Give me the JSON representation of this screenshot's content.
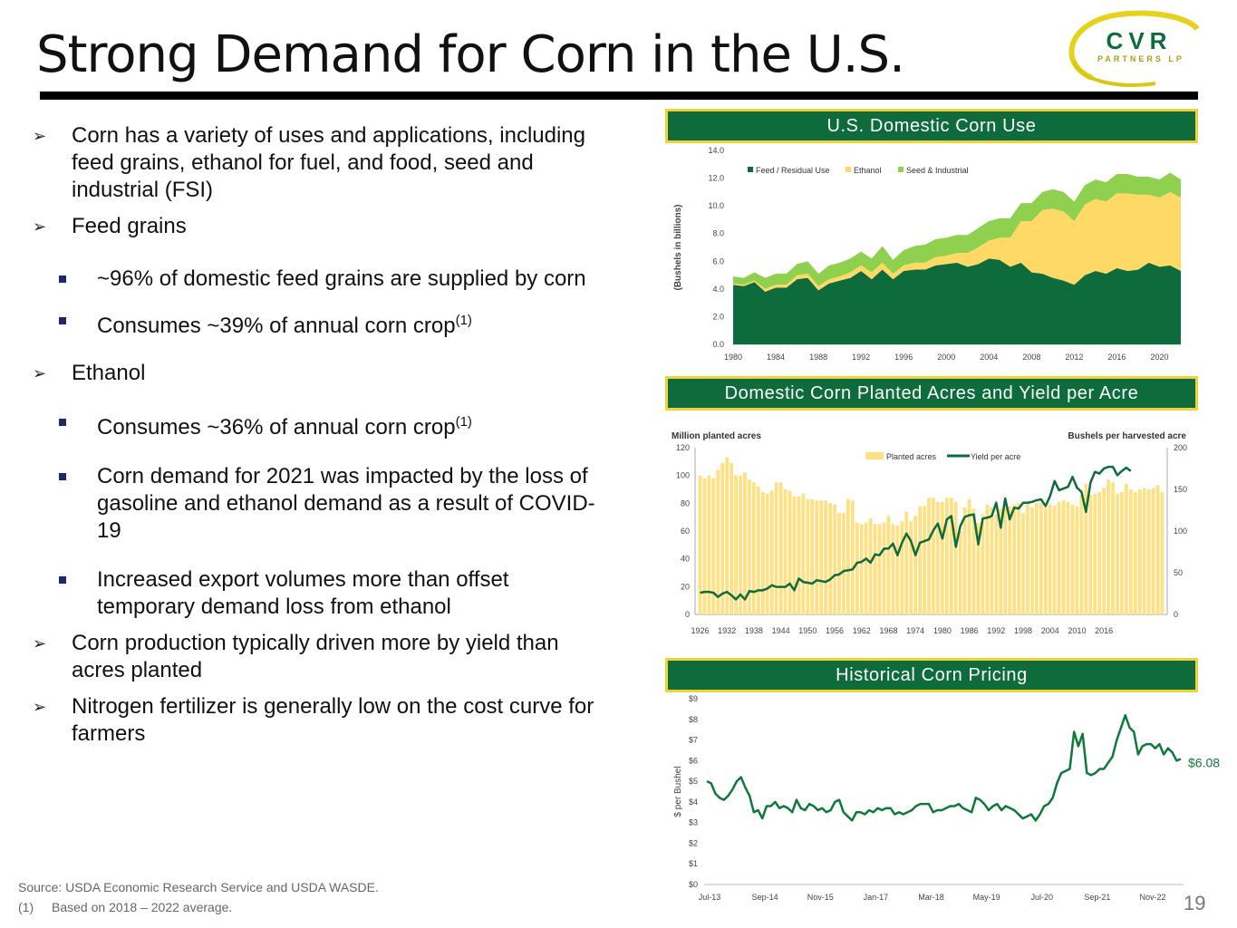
{
  "title": "Strong Demand for Corn in the U.S.",
  "logo": {
    "word": "CVR",
    "sub": "PARTNERS LP"
  },
  "bullets": [
    {
      "level": 1,
      "text": "Corn has a variety of uses and applications, including feed grains, ethanol for fuel, and food, seed and industrial (FSI)"
    },
    {
      "level": 1,
      "text": "Feed grains"
    },
    {
      "level": 2,
      "text": "~96% of domestic feed grains are supplied by corn"
    },
    {
      "level": 2,
      "text": "Consumes ~39% of annual corn crop",
      "sup": "(1)"
    },
    {
      "level": 1,
      "text": "Ethanol"
    },
    {
      "level": 2,
      "text": "Consumes ~36% of annual corn crop",
      "sup": "(1)"
    },
    {
      "level": 2,
      "text": "Corn demand for 2021 was impacted by the loss of gasoline and ethanol demand as a result of COVID-19"
    },
    {
      "level": 2,
      "text": "Increased export volumes more than offset temporary demand loss from ethanol"
    },
    {
      "level": 1,
      "text": "Corn production typically driven more by yield than acres planted"
    },
    {
      "level": 1,
      "text": "Nitrogen fertilizer is generally low on the cost curve for farmers"
    }
  ],
  "footnotes": {
    "source": "Source:  USDA Economic Research Service and USDA WASDE.",
    "note_marker": "(1)",
    "note_text": "Based on 2018 – 2022 average."
  },
  "page_number": "19",
  "colors": {
    "dark_green": "#0d6b3c",
    "light_green": "#8fd14f",
    "yellow": "#ffd966",
    "header_border": "#f2d23a",
    "bar_yellow": "#ffe082"
  },
  "chart_data": [
    {
      "type": "area",
      "title": "U.S. Domestic Corn Use",
      "ylabel": "(Bushels in billions)",
      "ylim": [
        0,
        14
      ],
      "yticks": [
        "0.0",
        "2.0",
        "4.0",
        "6.0",
        "8.0",
        "10.0",
        "12.0",
        "14.0"
      ],
      "xticks": [
        "1980",
        "1984",
        "1988",
        "1992",
        "1996",
        "2000",
        "2004",
        "2008",
        "2012",
        "2016",
        "2020"
      ],
      "x": [
        1980,
        1981,
        1982,
        1983,
        1984,
        1985,
        1986,
        1987,
        1988,
        1989,
        1990,
        1991,
        1992,
        1993,
        1994,
        1995,
        1996,
        1997,
        1998,
        1999,
        2000,
        2001,
        2002,
        2003,
        2004,
        2005,
        2006,
        2007,
        2008,
        2009,
        2010,
        2011,
        2012,
        2013,
        2014,
        2015,
        2016,
        2017,
        2018,
        2019,
        2020,
        2021,
        2022
      ],
      "series": [
        {
          "name": "Feed / Residual Use",
          "values": [
            4.3,
            4.2,
            4.5,
            3.8,
            4.1,
            4.1,
            4.7,
            4.8,
            3.9,
            4.4,
            4.6,
            4.8,
            5.3,
            4.7,
            5.4,
            4.7,
            5.3,
            5.4,
            5.4,
            5.7,
            5.8,
            5.9,
            5.6,
            5.8,
            6.2,
            6.1,
            5.6,
            5.9,
            5.2,
            5.1,
            4.8,
            4.6,
            4.3,
            5.0,
            5.3,
            5.1,
            5.5,
            5.3,
            5.4,
            5.9,
            5.6,
            5.7,
            5.3
          ]
        },
        {
          "name": "Ethanol",
          "values": [
            0.1,
            0.1,
            0.1,
            0.2,
            0.2,
            0.2,
            0.3,
            0.3,
            0.3,
            0.3,
            0.3,
            0.4,
            0.4,
            0.5,
            0.5,
            0.4,
            0.4,
            0.5,
            0.5,
            0.6,
            0.6,
            0.7,
            1.0,
            1.2,
            1.3,
            1.6,
            2.1,
            3.0,
            3.7,
            4.6,
            5.0,
            5.0,
            4.6,
            5.1,
            5.2,
            5.2,
            5.4,
            5.6,
            5.4,
            4.9,
            5.0,
            5.3,
            5.3
          ]
        },
        {
          "name": "Seed & Industrial",
          "values": [
            0.5,
            0.5,
            0.6,
            0.8,
            0.8,
            0.8,
            0.8,
            0.9,
            0.9,
            1.0,
            1.0,
            1.0,
            1.0,
            1.0,
            1.2,
            1.0,
            1.1,
            1.2,
            1.3,
            1.3,
            1.3,
            1.3,
            1.3,
            1.4,
            1.4,
            1.4,
            1.4,
            1.3,
            1.3,
            1.3,
            1.4,
            1.4,
            1.4,
            1.4,
            1.4,
            1.4,
            1.4,
            1.4,
            1.3,
            1.3,
            1.3,
            1.4,
            1.3
          ]
        }
      ]
    },
    {
      "type": "bar+line",
      "title": "Domestic Corn Planted Acres and Yield per Acre",
      "left_axis_label": "Million planted acres",
      "right_axis_label": "Bushels per harvested acre",
      "left_ylim": [
        0,
        120
      ],
      "right_ylim": [
        0,
        200
      ],
      "left_yticks": [
        "0",
        "20",
        "40",
        "60",
        "80",
        "100",
        "120"
      ],
      "right_yticks": [
        "0",
        "50",
        "100",
        "150",
        "200"
      ],
      "xticks": [
        "1926",
        "1932",
        "1938",
        "1944",
        "1950",
        "1956",
        "1962",
        "1968",
        "1974",
        "1980",
        "1986",
        "1992",
        "1998",
        "2004",
        "2010",
        "2016"
      ],
      "years_start": 1926,
      "series": [
        {
          "name": "Planted acres",
          "type": "bar",
          "values": [
            100,
            98,
            100,
            98,
            104,
            109,
            113,
            109,
            100,
            100,
            102,
            97,
            95,
            92,
            88,
            87,
            89,
            95,
            95,
            90,
            89,
            85,
            85,
            87,
            83,
            83,
            82,
            82,
            82,
            80,
            79,
            73,
            73,
            83,
            82,
            66,
            65,
            66,
            69,
            65,
            65,
            66,
            71,
            65,
            64,
            67,
            74,
            67,
            71,
            78,
            78,
            84,
            84,
            81,
            81,
            84,
            84,
            81,
            60,
            77,
            83,
            76,
            66,
            72,
            79,
            77,
            72,
            76,
            79,
            78,
            79,
            80,
            73,
            80,
            77,
            80,
            80,
            77,
            79,
            78,
            81,
            82,
            81,
            79,
            78,
            86,
            94,
            86,
            87,
            88,
            91,
            97,
            95,
            87,
            88,
            94,
            90,
            88,
            90,
            91,
            90,
            91,
            93,
            88
          ],
          "note": "approximate, 1926-2022 in 1-year steps (last values 2015-2022)"
        },
        {
          "name": "Yield per acre",
          "type": "line",
          "values": [
            26,
            27,
            27,
            26,
            21,
            25,
            27,
            23,
            18,
            24,
            18,
            28,
            27,
            29,
            29,
            31,
            35,
            33,
            33,
            33,
            37,
            29,
            43,
            39,
            38,
            37,
            41,
            40,
            39,
            42,
            47,
            48,
            52,
            53,
            54,
            62,
            63,
            67,
            62,
            72,
            71,
            79,
            79,
            85,
            71,
            86,
            97,
            88,
            71,
            86,
            88,
            90,
            101,
            109,
            91,
            114,
            118,
            81,
            106,
            117,
            119,
            120,
            84,
            115,
            116,
            118,
            134,
            104,
            139,
            114,
            128,
            127,
            134,
            134,
            135,
            137,
            138,
            130,
            142,
            160,
            149,
            151,
            153,
            165,
            152,
            147,
            123,
            158,
            171,
            169,
            175,
            177,
            177,
            167,
            172,
            176,
            172
          ]
        }
      ]
    },
    {
      "type": "line",
      "title": "Historical Corn Pricing",
      "ylabel": "$ per Bushel",
      "ylim": [
        0,
        9
      ],
      "yticks": [
        "$0",
        "$1",
        "$2",
        "$3",
        "$4",
        "$5",
        "$6",
        "$7",
        "$8",
        "$9"
      ],
      "xticks": [
        "Jul-13",
        "Sep-14",
        "Nov-15",
        "Jan-17",
        "Mar-18",
        "May-19",
        "Jul-20",
        "Sep-21",
        "Nov-22"
      ],
      "end_label": "$6.08",
      "series": [
        {
          "name": "Corn price",
          "values": [
            5.0,
            4.9,
            4.4,
            4.2,
            4.1,
            4.3,
            4.6,
            5.0,
            5.2,
            4.7,
            4.3,
            3.5,
            3.6,
            3.2,
            3.8,
            3.8,
            4.0,
            3.7,
            3.8,
            3.7,
            3.5,
            4.1,
            3.7,
            3.6,
            3.9,
            3.8,
            3.6,
            3.7,
            3.5,
            3.6,
            4.0,
            4.1,
            3.5,
            3.3,
            3.1,
            3.5,
            3.5,
            3.4,
            3.6,
            3.5,
            3.7,
            3.6,
            3.7,
            3.7,
            3.4,
            3.5,
            3.4,
            3.5,
            3.6,
            3.8,
            3.9,
            3.9,
            3.9,
            3.5,
            3.6,
            3.6,
            3.7,
            3.8,
            3.8,
            3.9,
            3.7,
            3.6,
            3.5,
            4.2,
            4.1,
            3.9,
            3.6,
            3.8,
            3.9,
            3.6,
            3.8,
            3.7,
            3.6,
            3.4,
            3.2,
            3.3,
            3.4,
            3.1,
            3.4,
            3.8,
            3.9,
            4.2,
            4.9,
            5.4,
            5.5,
            5.6,
            7.4,
            6.7,
            7.3,
            5.4,
            5.3,
            5.4,
            5.6,
            5.6,
            5.9,
            6.2,
            7.0,
            7.6,
            8.2,
            7.6,
            7.4,
            6.3,
            6.7,
            6.8,
            6.8,
            6.6,
            6.8,
            6.3,
            6.6,
            6.4,
            6.0,
            6.08
          ]
        }
      ]
    }
  ]
}
